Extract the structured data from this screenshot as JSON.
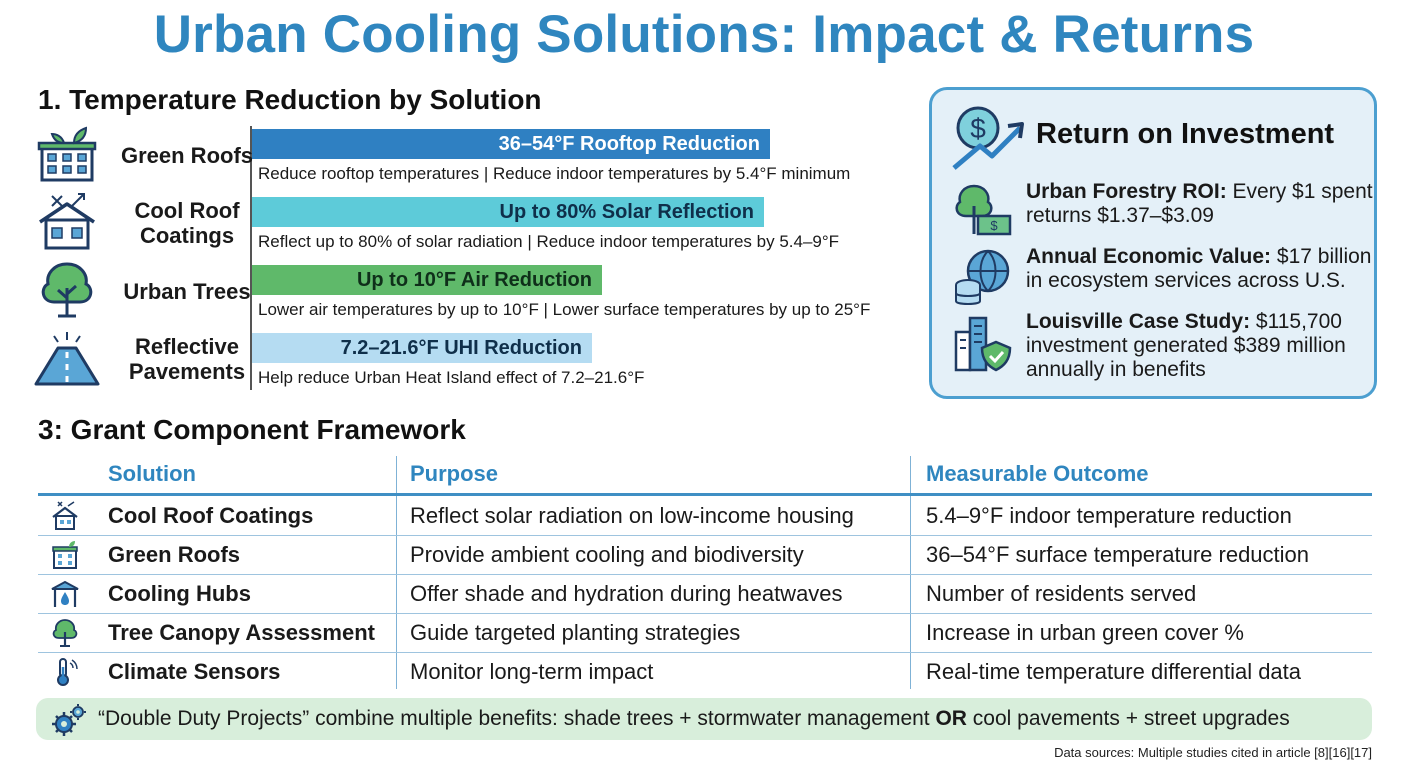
{
  "title": "Urban Cooling Solutions: Impact & Returns",
  "section1": {
    "heading": "1. Temperature Reduction by Solution",
    "solutions": [
      {
        "name": "Green Roofs",
        "bar_label": "36–54°F Rooftop Reduction",
        "bar_color": "#2f80c2",
        "bar_text_color": "#ffffff",
        "description": "Reduce rooftop temperatures | Reduce indoor temperatures by 5.4°F minimum",
        "icon": "green-roof-building-icon"
      },
      {
        "name": "Cool Roof Coatings",
        "bar_label": "Up to 80% Solar Reflection",
        "bar_color": "#5dcbd9",
        "bar_text_color": "#0f2f4a",
        "description": "Reflect up to 80% of solar radiation | Reduce indoor temperatures by 5.4–9°F",
        "icon": "cool-roof-house-icon"
      },
      {
        "name": "Urban Trees",
        "bar_label": "Up to 10°F Air Reduction",
        "bar_color": "#5fb96a",
        "bar_text_color": "#0f2f1a",
        "description": "Lower air temperatures by up to 10°F | Lower surface temperatures by up to 25°F",
        "icon": "tree-icon"
      },
      {
        "name": "Reflective Pavements",
        "bar_label": "7.2–21.6°F UHI Reduction",
        "bar_color": "#b5dcf2",
        "bar_text_color": "#0f2f4a",
        "description": "Help reduce Urban Heat Island effect of 7.2–21.6°F",
        "icon": "road-icon"
      }
    ]
  },
  "roi": {
    "heading": "Return on Investment",
    "items": [
      {
        "label": "Urban Forestry ROI:",
        "text": "Every $1 spent returns $1.37–$3.09",
        "icon": "tree-money-icon"
      },
      {
        "label": "Annual Economic Value:",
        "text": "$17 billion in ecosystem services across U.S.",
        "icon": "globe-coins-icon"
      },
      {
        "label": "Louisville Case Study:",
        "text": "$115,700 investment generated $389 million annually in benefits",
        "icon": "city-shield-icon"
      }
    ]
  },
  "section3": {
    "heading": "3: Grant Component Framework",
    "columns": [
      "Solution",
      "Purpose",
      "Measurable Outcome"
    ],
    "rows": [
      {
        "solution": "Cool Roof Coatings",
        "purpose": "Reflect solar radiation on low-income housing",
        "outcome": "5.4–9°F indoor temperature reduction",
        "icon": "house-sun-icon"
      },
      {
        "solution": "Green Roofs",
        "purpose": "Provide ambient cooling and biodiversity",
        "outcome": "36–54°F surface temperature reduction",
        "icon": "building-icon"
      },
      {
        "solution": "Cooling Hubs",
        "purpose": "Offer shade and hydration during heatwaves",
        "outcome": "Number of residents served",
        "icon": "water-drop-shelter-icon"
      },
      {
        "solution": "Tree Canopy Assessment",
        "purpose": "Guide targeted planting strategies",
        "outcome": "Increase in urban green cover %",
        "icon": "small-tree-icon"
      },
      {
        "solution": "Climate Sensors",
        "purpose": "Monitor long-term impact",
        "outcome": "Real-time temperature differential data",
        "icon": "thermometer-icon"
      }
    ]
  },
  "banner": {
    "part1": "“Double Duty Projects” combine multiple benefits: shade trees + stormwater management ",
    "emphasis": "OR",
    "part2": " cool pavements + street upgrades",
    "icon": "gears-icon"
  },
  "sources": "Data sources: Multiple studies cited in article [8][16][17]"
}
